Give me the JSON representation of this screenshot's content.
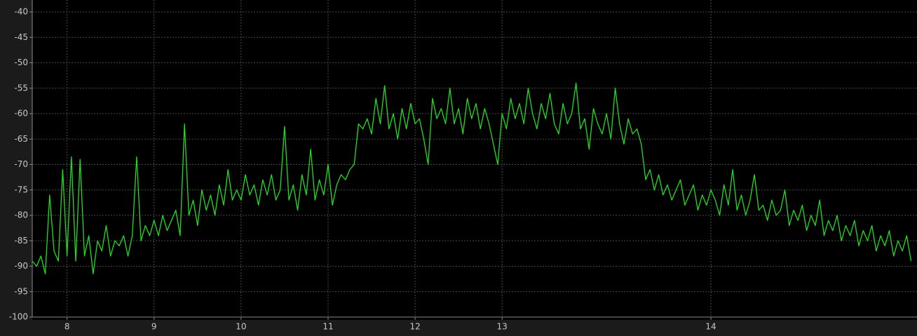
{
  "chart_data": {
    "type": "line",
    "x": [
      2445,
      2445.25,
      2445.5,
      2445.75,
      2446,
      2446.25,
      2446.5,
      2446.75,
      2447,
      2447.25,
      2447.5,
      2447.75,
      2448,
      2448.25,
      2448.5,
      2448.75,
      2449,
      2449.25,
      2449.5,
      2449.75,
      2450,
      2450.25,
      2450.5,
      2450.75,
      2451,
      2451.25,
      2451.5,
      2451.75,
      2452,
      2452.25,
      2452.5,
      2452.75,
      2453,
      2453.25,
      2453.5,
      2453.75,
      2454,
      2454.25,
      2454.5,
      2454.75,
      2455,
      2455.25,
      2455.5,
      2455.75,
      2456,
      2456.25,
      2456.5,
      2456.75,
      2457,
      2457.25,
      2457.5,
      2457.75,
      2458,
      2458.25,
      2458.5,
      2458.75,
      2459,
      2459.25,
      2459.5,
      2459.75,
      2460,
      2460.25,
      2460.5,
      2460.75,
      2461,
      2461.25,
      2461.5,
      2461.75,
      2462,
      2462.25,
      2462.5,
      2462.75,
      2463,
      2463.25,
      2463.5,
      2463.75,
      2464,
      2464.25,
      2464.5,
      2464.75,
      2465,
      2465.25,
      2465.5,
      2465.75,
      2466,
      2466.25,
      2466.5,
      2466.75,
      2467,
      2467.25,
      2467.5,
      2467.75,
      2468,
      2468.25,
      2468.5,
      2468.75,
      2469,
      2469.25,
      2469.5,
      2469.75,
      2470,
      2470.25,
      2470.5,
      2470.75,
      2471,
      2471.25,
      2471.5,
      2471.75,
      2472,
      2472.25,
      2472.5,
      2472.75,
      2473,
      2473.25,
      2473.5,
      2473.75,
      2474,
      2474.25,
      2474.5,
      2474.75,
      2475,
      2475.25,
      2475.5,
      2475.75,
      2476,
      2476.25,
      2476.5,
      2476.75,
      2477,
      2477.25,
      2477.5,
      2477.75,
      2478,
      2478.25,
      2478.5,
      2478.75,
      2479,
      2479.25,
      2479.5,
      2479.75,
      2480,
      2480.25,
      2480.5,
      2480.75,
      2481,
      2481.25,
      2481.5,
      2481.75,
      2482,
      2482.25,
      2482.5,
      2482.75,
      2483,
      2483.25,
      2483.5,
      2483.75,
      2484,
      2484.25,
      2484.5,
      2484.75,
      2485,
      2485.25,
      2485.5,
      2485.75,
      2486,
      2486.25,
      2486.5,
      2486.75,
      2487,
      2487.25,
      2487.5,
      2487.75,
      2488,
      2488.25,
      2488.5,
      2488.75,
      2489,
      2489.25,
      2489.5,
      2489.75,
      2490,
      2490.25,
      2490.5,
      2490.75,
      2491,
      2491.25,
      2491.5,
      2491.75,
      2492,
      2492.25,
      2492.5,
      2492.75,
      2493,
      2493.25,
      2493.5,
      2493.75,
      2494,
      2494.25,
      2494.5,
      2494.75,
      2495,
      2495.25,
      2495.5
    ],
    "series": [
      {
        "color": "#22dd22",
        "values": [
          -89,
          -90,
          -88,
          -91.5,
          -76,
          -87,
          -89,
          -71,
          -88,
          -68.5,
          -89,
          -69,
          -88,
          -84,
          -91.5,
          -85,
          -87,
          -82,
          -88,
          -85,
          -86,
          -84,
          -88,
          -84,
          -68.5,
          -85,
          -82,
          -84,
          -81,
          -84,
          -80,
          -83,
          -81,
          -79,
          -84,
          -62,
          -80,
          -77,
          -82,
          -75,
          -79,
          -76,
          -80,
          -74,
          -78,
          -71,
          -77,
          -75,
          -77,
          -72,
          -76,
          -74,
          -78,
          -73,
          -76,
          -72,
          -77,
          -75,
          -62.5,
          -77,
          -74,
          -79,
          -72,
          -76,
          -67,
          -77,
          -73,
          -76,
          -70,
          -78,
          -74,
          -72,
          -73,
          -71,
          -70,
          -62,
          -63,
          -61,
          -64,
          -57,
          -62,
          -54.5,
          -63,
          -60,
          -65,
          -59,
          -63,
          -58,
          -62,
          -61,
          -65,
          -70,
          -57,
          -61,
          -59,
          -62,
          -55,
          -62,
          -59,
          -64,
          -57,
          -61,
          -58,
          -63,
          -59,
          -62,
          -66,
          -70,
          -60,
          -63,
          -57,
          -61,
          -58,
          -62,
          -55,
          -60,
          -63,
          -58,
          -61,
          -56,
          -62,
          -64,
          -58,
          -62,
          -60,
          -54,
          -63,
          -61,
          -67,
          -59,
          -62,
          -64,
          -60,
          -65,
          -55,
          -62,
          -66,
          -61,
          -64,
          -63,
          -66,
          -73,
          -71,
          -75,
          -72,
          -76,
          -74,
          -77,
          -75,
          -73,
          -78,
          -76,
          -74,
          -79,
          -76,
          -78,
          -75,
          -77,
          -80,
          -74,
          -78,
          -71,
          -79,
          -76,
          -80,
          -77,
          -72,
          -79,
          -78,
          -81,
          -77,
          -80,
          -79,
          -75,
          -82,
          -79,
          -81,
          -78,
          -83,
          -80,
          -82,
          -77,
          -84,
          -81,
          -83,
          -80,
          -85,
          -82,
          -84,
          -81,
          -86,
          -83,
          -85,
          -82,
          -87,
          -84,
          -86,
          -83,
          -88,
          -85,
          -87,
          -84,
          -89
        ]
      }
    ],
    "xlim": [
      2445,
      2495.6
    ],
    "xticks": [
      {
        "value": 2447,
        "label": "8"
      },
      {
        "value": 2452,
        "label": "9"
      },
      {
        "value": 2457,
        "label": "10"
      },
      {
        "value": 2462,
        "label": "11"
      },
      {
        "value": 2467,
        "label": "12"
      },
      {
        "value": 2472,
        "label": "13"
      },
      {
        "value": 2484,
        "label": "14"
      }
    ],
    "ylim": [
      -100,
      -40
    ],
    "yticks": [
      -40,
      -45,
      -50,
      -55,
      -60,
      -65,
      -70,
      -75,
      -80,
      -85,
      -90,
      -95,
      -100
    ],
    "grid": true
  }
}
